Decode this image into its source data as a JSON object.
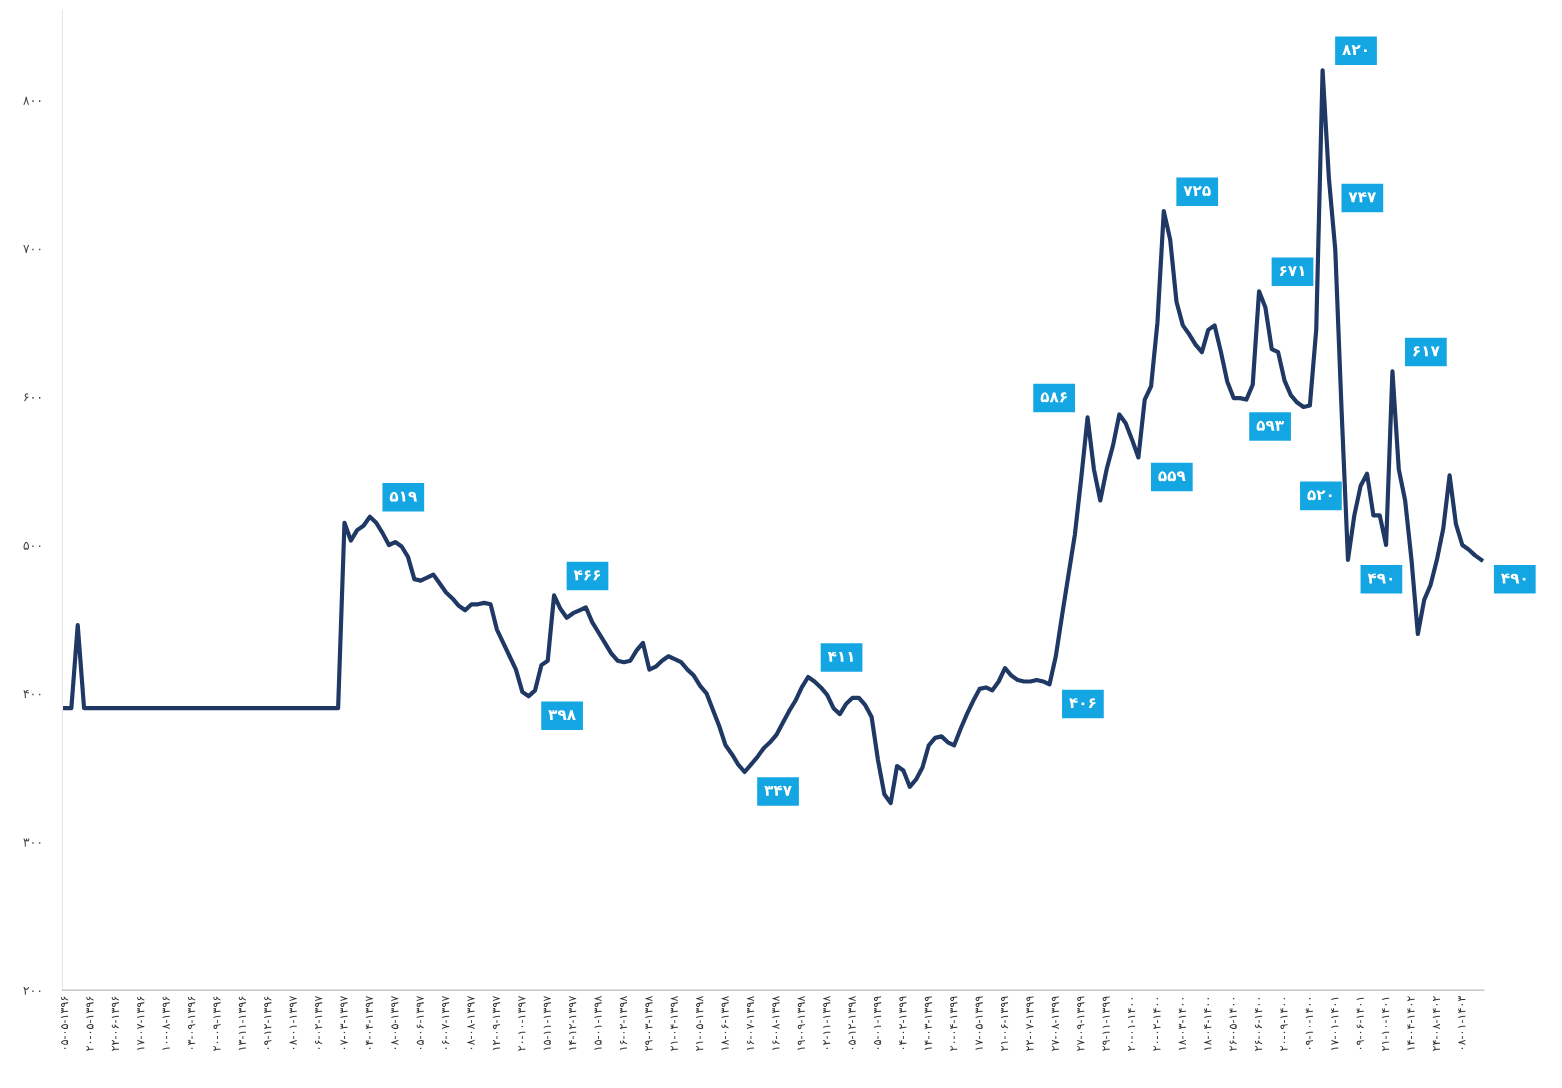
{
  "chart_data": {
    "type": "line",
    "categories": [
      "۰۵-۰۵-۱۳۹۶",
      null,
      null,
      null,
      "۲۰-۰۵-۱۳۹۶",
      null,
      null,
      null,
      "۲۲-۰۶-۱۳۹۶",
      null,
      null,
      null,
      "۱۷-۰۷-۱۳۹۶",
      null,
      null,
      null,
      "۱۰-۰۸-۱۳۹۶",
      null,
      null,
      null,
      "۰۳-۰۹-۱۳۹۶",
      null,
      null,
      null,
      "۲۰-۰۹-۱۳۹۶",
      null,
      null,
      null,
      "۱۳-۱۱-۱۳۹۶",
      null,
      null,
      null,
      "۰۹-۱۲-۱۳۹۶",
      null,
      null,
      null,
      "۰۸-۰۱-۱۳۹۷",
      null,
      null,
      null,
      "۰۶-۰۲-۱۳۹۷",
      null,
      null,
      null,
      "۰۷-۰۳-۱۳۹۷",
      null,
      null,
      null,
      "۰۴-۰۴-۱۳۹۷",
      null,
      null,
      null,
      "۰۸-۰۵-۱۳۹۷",
      null,
      null,
      null,
      "۰۵-۰۶-۱۳۹۷",
      null,
      null,
      null,
      "۰۶-۰۷-۱۳۹۷",
      null,
      null,
      null,
      "۰۸-۰۸-۱۳۹۷",
      null,
      null,
      null,
      "۱۲-۰۹-۱۳۹۷",
      null,
      null,
      null,
      "۲۰-۱۰-۱۳۹۷",
      null,
      null,
      null,
      "۱۵-۱۱-۱۳۹۷",
      null,
      null,
      null,
      "۱۴-۱۲-۱۳۹۷",
      null,
      null,
      null,
      "۱۵-۰۱-۱۳۹۸",
      null,
      null,
      null,
      "۱۶-۰۲-۱۳۹۸",
      null,
      null,
      null,
      "۲۹-۰۳-۱۳۹۸",
      null,
      null,
      null,
      "۲۱-۰۴-۱۳۹۸",
      null,
      null,
      null,
      "۲۱-۰۵-۱۳۹۸",
      null,
      null,
      null,
      "۱۸-۰۶-۱۳۹۸",
      null,
      null,
      null,
      "۱۶-۰۷-۱۳۹۸",
      null,
      null,
      null,
      "۱۶-۰۸-۱۳۹۸",
      null,
      null,
      null,
      "۱۹-۰۹-۱۳۹۸",
      null,
      null,
      null,
      "۰۲-۱۱-۱۳۹۸",
      null,
      null,
      null,
      "۰۵-۱۲-۱۳۹۸",
      null,
      null,
      null,
      "۰۵-۰۱-۱۳۹۹",
      null,
      null,
      null,
      "۰۴-۰۲-۱۳۹۹",
      null,
      null,
      null,
      "۱۴-۰۳-۱۳۹۹",
      null,
      null,
      null,
      "۲۰-۰۴-۱۳۹۹",
      null,
      null,
      null,
      "۱۷-۰۵-۱۳۹۹",
      null,
      null,
      null,
      "۲۱-۰۶-۱۳۹۹",
      null,
      null,
      null,
      "۲۲-۰۷-۱۳۹۹",
      null,
      null,
      null,
      "۲۷-۰۸-۱۳۹۹",
      null,
      null,
      null,
      "۲۷-۰۹-۱۳۹۹",
      null,
      null,
      null,
      "۲۹-۱۱-۱۳۹۹",
      null,
      null,
      null,
      "۲۰-۰۱-۱۴۰۰",
      null,
      null,
      null,
      "۲۰-۰۲-۱۴۰۰",
      null,
      null,
      null,
      "۱۸-۰۳-۱۴۰۰",
      null,
      null,
      null,
      "۱۸-۰۴-۱۴۰۰",
      null,
      null,
      null,
      "۲۶-۰۵-۱۴۰۰",
      null,
      null,
      null,
      "۲۶-۰۶-۱۴۰۰",
      null,
      null,
      null,
      "۲۰-۰۹-۱۴۰۰",
      null,
      null,
      null,
      "۰۹-۱۰-۱۴۰۰",
      null,
      null,
      null,
      "۱۷-۰۱-۱۴۰۱",
      null,
      null,
      null,
      "۰۹-۰۶-۱۴۰۱",
      null,
      null,
      null,
      "۲۱-۱۰-۱۴۰۱",
      null,
      null,
      null,
      "۱۴-۰۴-۱۴۰۲",
      null,
      null,
      null,
      "۲۴-۰۸-۱۴۰۲",
      null,
      null,
      null,
      "۰۸-۰۱-۱۴۰۳",
      null,
      null,
      null
    ],
    "ylim": [
      200,
      860
    ],
    "yticks": [
      {
        "value": 200,
        "label": "۲۰۰"
      },
      {
        "value": 300,
        "label": "۳۰۰"
      },
      {
        "value": 400,
        "label": "۴۰۰"
      },
      {
        "value": 500,
        "label": "۵۰۰"
      },
      {
        "value": 600,
        "label": "۶۰۰"
      },
      {
        "value": 700,
        "label": "۷۰۰"
      },
      {
        "value": 800,
        "label": "۸۰۰"
      }
    ],
    "grid": false,
    "series": [
      {
        "color": "#1f3864",
        "values": [
          390,
          390,
          446,
          390,
          390,
          390,
          390,
          390,
          390,
          390,
          390,
          390,
          390,
          390,
          390,
          390,
          390,
          390,
          390,
          390,
          390,
          390,
          390,
          390,
          390,
          390,
          390,
          390,
          390,
          390,
          390,
          390,
          390,
          390,
          390,
          390,
          390,
          390,
          390,
          390,
          390,
          390,
          390,
          390,
          515,
          503,
          510,
          513,
          519,
          515,
          508,
          500,
          502,
          499,
          492,
          477,
          476,
          478,
          480,
          474,
          468,
          464,
          459,
          456,
          460,
          460,
          461,
          460,
          443,
          434,
          425,
          416,
          401,
          398,
          402,
          419,
          422,
          466,
          457,
          451,
          454,
          456,
          458,
          448,
          441,
          434,
          427,
          422,
          421,
          422,
          429,
          434,
          416,
          418,
          422,
          425,
          423,
          421,
          416,
          412,
          405,
          400,
          389,
          378,
          365,
          359,
          352,
          347,
          352,
          357,
          363,
          367,
          372,
          380,
          388,
          395,
          404,
          411,
          408,
          404,
          399,
          390,
          386,
          393,
          397,
          397,
          392,
          384,
          355,
          332,
          326,
          351,
          348,
          337,
          342,
          350,
          365,
          370,
          371,
          367,
          365,
          376,
          386,
          395,
          403,
          404,
          402,
          408,
          417,
          412,
          409,
          408,
          408,
          409,
          408,
          406,
          425,
          453,
          480,
          507,
          545,
          586,
          551,
          530,
          551,
          567,
          588,
          582,
          571,
          559,
          598,
          607,
          650,
          725,
          706,
          664,
          648,
          642,
          635,
          630,
          645,
          648,
          630,
          610,
          599,
          599,
          598,
          608,
          671,
          660,
          632,
          630,
          611,
          601,
          596,
          593,
          594,
          645,
          820,
          747,
          699,
          590,
          490,
          520,
          540,
          548,
          520,
          520,
          500,
          617,
          551,
          530,
          490,
          440,
          463,
          473,
          490,
          511,
          547,
          514,
          500,
          497,
          493,
          490
        ],
        "value_labels": [
          null,
          null,
          null,
          null,
          null,
          null,
          null,
          null,
          null,
          null,
          null,
          null,
          null,
          null,
          null,
          null,
          null,
          null,
          null,
          null,
          null,
          null,
          null,
          null,
          null,
          null,
          null,
          null,
          null,
          null,
          null,
          null,
          null,
          null,
          null,
          null,
          null,
          null,
          null,
          null,
          null,
          null,
          null,
          null,
          null,
          null,
          null,
          null,
          "۵۱۹",
          null,
          null,
          null,
          null,
          null,
          null,
          null,
          null,
          null,
          null,
          null,
          null,
          null,
          null,
          null,
          null,
          null,
          null,
          null,
          null,
          null,
          null,
          null,
          null,
          "۳۹۸",
          null,
          null,
          null,
          "۴۶۶",
          null,
          null,
          null,
          null,
          null,
          null,
          null,
          null,
          null,
          null,
          null,
          null,
          null,
          null,
          null,
          null,
          null,
          null,
          null,
          null,
          null,
          null,
          null,
          null,
          null,
          null,
          null,
          null,
          null,
          "۳۴۷",
          null,
          null,
          null,
          null,
          null,
          null,
          null,
          null,
          null,
          "۴۱۱",
          null,
          null,
          null,
          null,
          null,
          null,
          null,
          null,
          null,
          null,
          null,
          null,
          null,
          null,
          null,
          null,
          null,
          null,
          null,
          null,
          null,
          null,
          null,
          null,
          null,
          null,
          null,
          null,
          null,
          null,
          null,
          null,
          null,
          null,
          null,
          null,
          null,
          "۴۰۶",
          null,
          null,
          null,
          null,
          null,
          "۵۸۶",
          null,
          null,
          null,
          null,
          null,
          null,
          null,
          "۵۵۹",
          null,
          null,
          null,
          "۷۲۵",
          null,
          null,
          null,
          null,
          null,
          null,
          null,
          null,
          null,
          null,
          null,
          null,
          null,
          null,
          "۶۷۱",
          null,
          null,
          null,
          null,
          null,
          null,
          "۵۹۳",
          null,
          null,
          "۸۲۰",
          "۷۴۷",
          null,
          null,
          "۴۹۰",
          "۵۲۰",
          null,
          null,
          null,
          null,
          null,
          "۶۱۷",
          null,
          null,
          null,
          null,
          null,
          null,
          null,
          null,
          null,
          null,
          null,
          null,
          null,
          "۴۹۰"
        ]
      }
    ]
  }
}
